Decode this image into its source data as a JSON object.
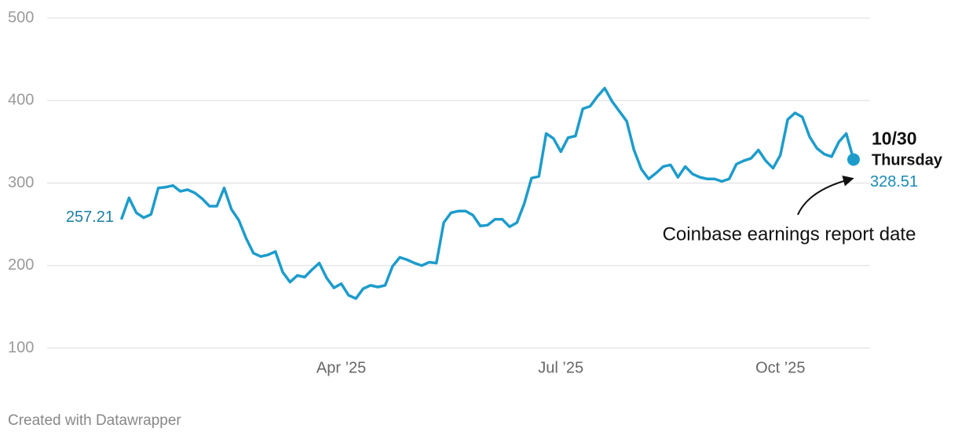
{
  "chart_data": {
    "type": "line",
    "categories": [
      null,
      null,
      null,
      null,
      null,
      null,
      null,
      null,
      null,
      null,
      null,
      null,
      null,
      null,
      null,
      null,
      null,
      null,
      null,
      null,
      null,
      null,
      null,
      null,
      null,
      null,
      null,
      null,
      null,
      null,
      "Apr ’25",
      null,
      null,
      null,
      null,
      null,
      null,
      null,
      null,
      null,
      null,
      null,
      null,
      null,
      null,
      null,
      null,
      null,
      null,
      null,
      null,
      null,
      null,
      null,
      null,
      null,
      null,
      null,
      null,
      null,
      "Jul ’25",
      null,
      null,
      null,
      null,
      null,
      null,
      null,
      null,
      null,
      null,
      null,
      null,
      null,
      null,
      null,
      null,
      null,
      null,
      null,
      null,
      null,
      null,
      null,
      null,
      null,
      null,
      null,
      null,
      null,
      "Oct ’25",
      null,
      null,
      null,
      null,
      null,
      null,
      null,
      null,
      null,
      "10/30"
    ],
    "values": [
      257.21,
      282,
      264,
      258,
      262,
      294,
      295,
      297,
      290,
      292,
      288,
      281,
      272,
      272,
      294,
      268,
      255,
      233,
      215,
      211,
      213,
      217,
      192,
      180,
      188,
      186,
      195,
      203,
      185,
      173,
      178,
      164,
      160,
      172,
      176,
      174,
      176,
      199,
      210,
      207,
      203,
      200,
      204,
      203,
      252,
      264,
      266,
      266,
      261,
      248,
      249,
      256,
      256,
      247,
      252,
      275,
      306,
      308,
      360,
      354,
      338,
      355,
      357,
      390,
      393,
      405,
      415,
      399,
      387,
      375,
      340,
      317,
      305,
      312,
      320,
      322,
      307,
      320,
      311,
      307,
      305,
      305,
      302,
      305,
      323,
      327,
      330,
      340,
      327,
      318,
      334,
      377,
      385,
      380,
      356,
      342,
      335,
      332,
      350,
      360,
      328.51
    ],
    "color": "#1d9ccb",
    "ylim": [
      100,
      500
    ],
    "yticks": [
      100,
      200,
      300,
      400,
      500
    ],
    "grid": true,
    "annotations": {
      "weekday": "Thursday",
      "note": "Coinbase earnings report date"
    },
    "footer": "Created with Datawrapper"
  }
}
